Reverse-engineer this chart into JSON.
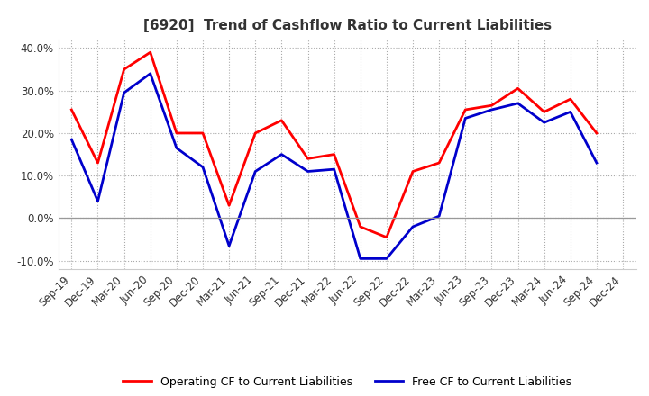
{
  "title": "[6920]  Trend of Cashflow Ratio to Current Liabilities",
  "x_labels": [
    "Sep-19",
    "Dec-19",
    "Mar-20",
    "Jun-20",
    "Sep-20",
    "Dec-20",
    "Mar-21",
    "Jun-21",
    "Sep-21",
    "Dec-21",
    "Mar-22",
    "Jun-22",
    "Sep-22",
    "Dec-22",
    "Mar-23",
    "Jun-23",
    "Sep-23",
    "Dec-23",
    "Mar-24",
    "Jun-24",
    "Sep-24",
    "Dec-24"
  ],
  "operating_cf": [
    0.255,
    0.13,
    0.35,
    0.39,
    0.2,
    0.2,
    0.03,
    0.2,
    0.23,
    0.14,
    0.15,
    -0.02,
    -0.045,
    0.11,
    0.13,
    0.255,
    0.265,
    0.305,
    0.25,
    0.28,
    0.2,
    null
  ],
  "free_cf": [
    0.185,
    0.04,
    0.295,
    0.34,
    0.165,
    0.12,
    -0.065,
    0.11,
    0.15,
    0.11,
    0.115,
    -0.095,
    -0.095,
    -0.02,
    0.005,
    0.235,
    0.255,
    0.27,
    0.225,
    0.25,
    0.13,
    null
  ],
  "ylim": [
    -0.12,
    0.42
  ],
  "yticks": [
    -0.1,
    0.0,
    0.1,
    0.2,
    0.3,
    0.4
  ],
  "operating_color": "#FF0000",
  "free_color": "#0000CC",
  "background_color": "#FFFFFF",
  "plot_bg_color": "#FFFFFF",
  "grid_color": "#AAAAAA",
  "legend_labels": [
    "Operating CF to Current Liabilities",
    "Free CF to Current Liabilities"
  ],
  "title_color": "#333333",
  "label_fontsize": 8.5,
  "title_fontsize": 11
}
